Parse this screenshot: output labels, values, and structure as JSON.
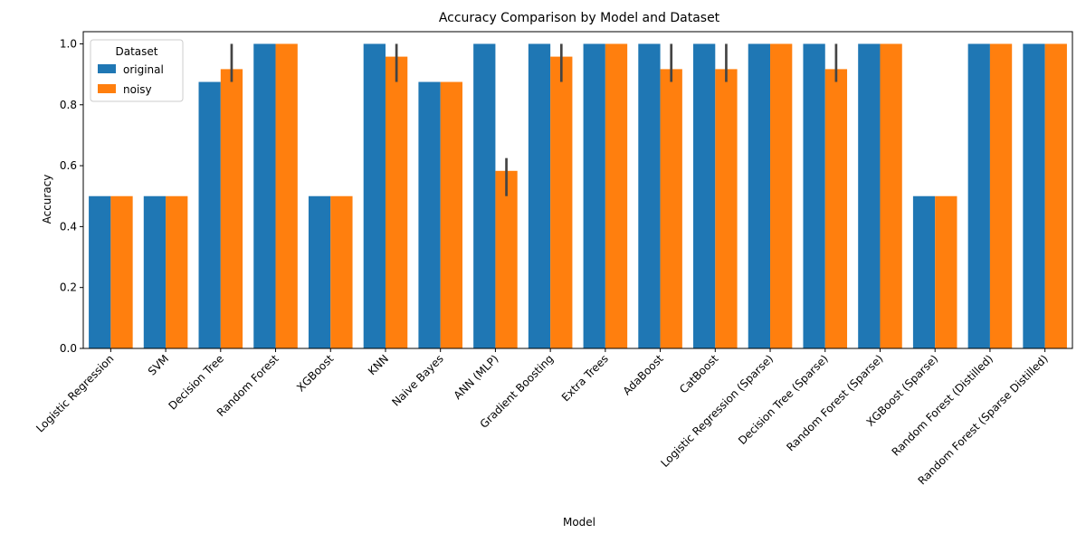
{
  "chart_data": {
    "type": "bar",
    "title": "Accuracy Comparison by Model and Dataset",
    "xlabel": "Model",
    "ylabel": "Accuracy",
    "ylim": [
      0,
      1.04
    ],
    "yticks": [
      "0.0",
      "0.2",
      "0.4",
      "0.6",
      "0.8",
      "1.0"
    ],
    "categories": [
      "Logistic Regression",
      "SVM",
      "Decision Tree",
      "Random Forest",
      "XGBoost",
      "KNN",
      "Naive Bayes",
      "ANN (MLP)",
      "Gradient Boosting",
      "Extra Trees",
      "AdaBoost",
      "CatBoost",
      "Logistic Regression (Sparse)",
      "Decision Tree (Sparse)",
      "Random Forest (Sparse)",
      "XGBoost (Sparse)",
      "Random Forest (Distilled)",
      "Random Forest (Sparse Distilled)"
    ],
    "series": [
      {
        "name": "original",
        "color": "#1f77b4",
        "values": [
          0.5,
          0.5,
          0.875,
          1.0,
          0.5,
          1.0,
          0.875,
          1.0,
          1.0,
          1.0,
          1.0,
          1.0,
          1.0,
          1.0,
          1.0,
          0.5,
          1.0,
          1.0
        ],
        "ci": [
          null,
          null,
          null,
          null,
          null,
          null,
          null,
          null,
          null,
          null,
          null,
          null,
          null,
          null,
          null,
          null,
          null,
          null
        ]
      },
      {
        "name": "noisy",
        "color": "#ff7f0e",
        "values": [
          0.5,
          0.5,
          0.917,
          1.0,
          0.5,
          0.958,
          0.875,
          0.583,
          0.958,
          1.0,
          0.917,
          0.917,
          1.0,
          0.917,
          1.0,
          0.5,
          1.0,
          1.0
        ],
        "ci": [
          null,
          null,
          [
            0.875,
            1.0
          ],
          null,
          null,
          [
            0.875,
            1.0
          ],
          null,
          [
            0.5,
            0.625
          ],
          [
            0.875,
            1.0
          ],
          null,
          [
            0.875,
            1.0
          ],
          [
            0.875,
            1.0
          ],
          null,
          [
            0.875,
            1.0
          ],
          null,
          null,
          null,
          null
        ]
      }
    ],
    "legend": {
      "title": "Dataset",
      "position": "top-left"
    },
    "grid": false
  }
}
